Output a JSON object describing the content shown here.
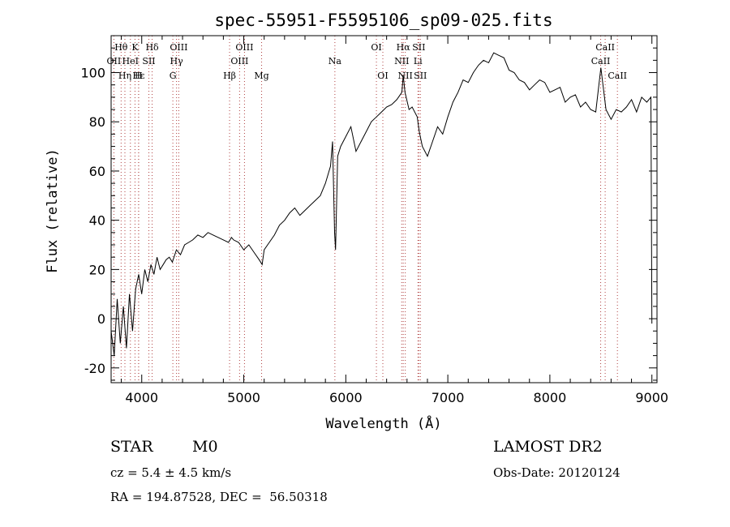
{
  "chart_data": {
    "type": "line",
    "title": "spec-55951-F5595106_sp09-025.fits",
    "xlabel": "Wavelength (Å)",
    "ylabel": "Flux (relative)",
    "xlim": [
      3700,
      9050
    ],
    "ylim": [
      -26,
      115
    ],
    "xticks": [
      4000,
      5000,
      6000,
      7000,
      8000,
      9000
    ],
    "yticks": [
      -20,
      0,
      20,
      40,
      60,
      80,
      100
    ],
    "grid": false,
    "series": [
      {
        "x": [
          3700,
          3730,
          3760,
          3790,
          3820,
          3850,
          3880,
          3910,
          3940,
          3970,
          4000,
          4030,
          4060,
          4090,
          4120,
          4150,
          4180,
          4210,
          4240,
          4270,
          4300,
          4340,
          4380,
          4420,
          4460,
          4500,
          4550,
          4600,
          4650,
          4700,
          4750,
          4800,
          4850,
          4880,
          4900,
          4950,
          5000,
          5050,
          5100,
          5150,
          5180,
          5200,
          5250,
          5300,
          5350,
          5400,
          5450,
          5500,
          5550,
          5600,
          5650,
          5700,
          5750,
          5800,
          5850,
          5870,
          5890,
          5900,
          5920,
          5950,
          6000,
          6050,
          6100,
          6150,
          6200,
          6250,
          6300,
          6350,
          6400,
          6450,
          6500,
          6550,
          6563,
          6580,
          6620,
          6650,
          6700,
          6720,
          6750,
          6800,
          6850,
          6900,
          6950,
          7000,
          7050,
          7100,
          7150,
          7200,
          7250,
          7300,
          7350,
          7400,
          7450,
          7500,
          7550,
          7600,
          7650,
          7700,
          7750,
          7800,
          7850,
          7900,
          7950,
          8000,
          8050,
          8100,
          8150,
          8200,
          8250,
          8300,
          8350,
          8400,
          8450,
          8500,
          8550,
          8600,
          8650,
          8700,
          8750,
          8800,
          8850,
          8900,
          8950,
          8990,
          9000
        ],
        "y": [
          -5,
          -15,
          8,
          -10,
          5,
          -12,
          10,
          -5,
          12,
          18,
          10,
          20,
          15,
          22,
          18,
          25,
          20,
          22,
          24,
          25,
          23,
          28,
          26,
          30,
          31,
          32,
          34,
          33,
          35,
          34,
          33,
          32,
          31,
          33,
          32,
          31,
          28,
          30,
          27,
          24,
          22,
          28,
          31,
          34,
          38,
          40,
          43,
          45,
          42,
          44,
          46,
          48,
          50,
          55,
          62,
          72,
          35,
          28,
          66,
          70,
          74,
          78,
          68,
          72,
          76,
          80,
          82,
          84,
          86,
          87,
          89,
          92,
          99,
          92,
          85,
          86,
          82,
          76,
          70,
          66,
          72,
          78,
          75,
          82,
          88,
          92,
          97,
          96,
          100,
          103,
          105,
          104,
          108,
          107,
          106,
          101,
          100,
          97,
          96,
          93,
          95,
          97,
          96,
          92,
          93,
          94,
          88,
          90,
          91,
          86,
          88,
          85,
          84,
          102,
          85,
          81,
          85,
          84,
          86,
          89,
          84,
          90,
          88,
          90,
          -2
        ]
      }
    ],
    "lines": [
      {
        "label": "Hθ",
        "x": 3798,
        "row": 1
      },
      {
        "label": "OII",
        "x": 3727,
        "row": 2
      },
      {
        "label": "Hε",
        "x": 3970,
        "row": 3
      },
      {
        "label": "Hη",
        "x": 3835,
        "row": 3
      },
      {
        "label": "K",
        "x": 3934,
        "row": 1
      },
      {
        "label": "H",
        "x": 3969,
        "row": 3
      },
      {
        "label": "HeI",
        "x": 3889,
        "row": 2
      },
      {
        "label": "SII",
        "x": 4070,
        "row": 2
      },
      {
        "label": "Hδ",
        "x": 4102,
        "row": 1
      },
      {
        "label": "OIII",
        "x": 4363,
        "row": 1
      },
      {
        "label": "Hγ",
        "x": 4341,
        "row": 2
      },
      {
        "label": "G",
        "x": 4305,
        "row": 3
      },
      {
        "label": "Hβ",
        "x": 4861,
        "row": 3
      },
      {
        "label": "OIII",
        "x": 4959,
        "row": 2
      },
      {
        "label": "OIII",
        "x": 5007,
        "row": 1
      },
      {
        "label": "Mg",
        "x": 5175,
        "row": 3
      },
      {
        "label": "Na",
        "x": 5893,
        "row": 2
      },
      {
        "label": "OI",
        "x": 6300,
        "row": 1
      },
      {
        "label": "OI",
        "x": 6363,
        "row": 3
      },
      {
        "label": "Hα",
        "x": 6563,
        "row": 1
      },
      {
        "label": "NII",
        "x": 6548,
        "row": 2
      },
      {
        "label": "NII",
        "x": 6583,
        "row": 3
      },
      {
        "label": "SII",
        "x": 6716,
        "row": 1
      },
      {
        "label": "Li",
        "x": 6707,
        "row": 2
      },
      {
        "label": "SII",
        "x": 6731,
        "row": 3
      },
      {
        "label": "CaII",
        "x": 8542,
        "row": 1
      },
      {
        "label": "CaII",
        "x": 8498,
        "row": 2
      },
      {
        "label": "CaII",
        "x": 8662,
        "row": 3
      }
    ]
  },
  "info": {
    "class": "STAR",
    "subclass": "M0",
    "cz": "cz = 5.4 ± 4.5 km/s",
    "coords": "RA = 194.87528, DEC =  56.50318",
    "survey": "LAMOST DR2",
    "obs_date": "Obs-Date: 20120124"
  }
}
